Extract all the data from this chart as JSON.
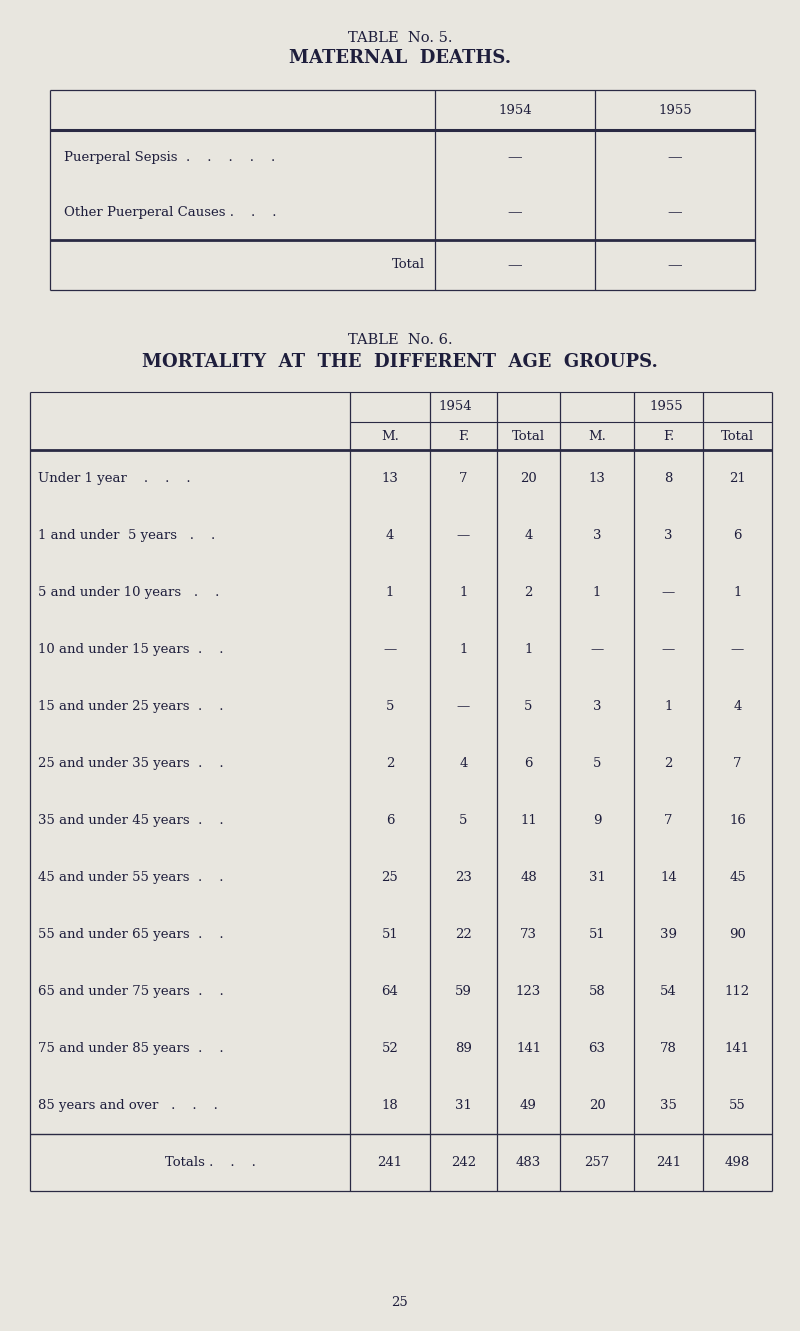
{
  "bg_color": "#e8e6df",
  "text_color": "#1e1e3c",
  "table5_title1": "TABLE  No. 5.",
  "table5_title2": "MATERNAL  DEATHS.",
  "table5_col_headers": [
    "1954",
    "1955"
  ],
  "table5_rows": [
    [
      "Puerperal Sepsis  .    .    .    .    .",
      "—",
      "—"
    ],
    [
      "Other Puerperal Causes .    .    .",
      "—",
      "—"
    ],
    [
      "Total",
      "—",
      "—"
    ]
  ],
  "table6_title1": "TABLE  No. 6.",
  "table6_title2": "MORTALITY  AT  THE  DIFFERENT  AGE  GROUPS.",
  "table6_year_headers": [
    "1954",
    "1955"
  ],
  "table6_col_headers": [
    "M.",
    "F.",
    "Total",
    "M.",
    "F.",
    "Total"
  ],
  "table6_rows": [
    [
      "Under 1 year    .    .    .",
      "13",
      "7",
      "20",
      "13",
      "8",
      "21"
    ],
    [
      "1 and under  5 years   .    .",
      "4",
      "—",
      "4",
      "3",
      "3",
      "6"
    ],
    [
      "5 and under 10 years   .    .",
      "1",
      "1",
      "2",
      "1",
      "—",
      "1"
    ],
    [
      "10 and under 15 years  .    .",
      "—",
      "1",
      "1",
      "—",
      "—",
      "—"
    ],
    [
      "15 and under 25 years  .    .",
      "5",
      "—",
      "5",
      "3",
      "1",
      "4"
    ],
    [
      "25 and under 35 years  .    .",
      "2",
      "4",
      "6",
      "5",
      "2",
      "7"
    ],
    [
      "35 and under 45 years  .    .",
      "6",
      "5",
      "11",
      "9",
      "7",
      "16"
    ],
    [
      "45 and under 55 years  .    .",
      "25",
      "23",
      "48",
      "31",
      "14",
      "45"
    ],
    [
      "55 and under 65 years  .    .",
      "51",
      "22",
      "73",
      "51",
      "39",
      "90"
    ],
    [
      "65 and under 75 years  .    .",
      "64",
      "59",
      "123",
      "58",
      "54",
      "112"
    ],
    [
      "75 and under 85 years  .    .",
      "52",
      "89",
      "141",
      "63",
      "78",
      "141"
    ],
    [
      "85 years and over   .    .    .",
      "18",
      "31",
      "49",
      "20",
      "35",
      "55"
    ],
    [
      "Totals .    .    .",
      "241",
      "242",
      "483",
      "257",
      "241",
      "498"
    ]
  ],
  "page_number": "25",
  "title_fontsize": 10.5,
  "bold_title_fontsize": 12,
  "body_fontsize": 9.5
}
